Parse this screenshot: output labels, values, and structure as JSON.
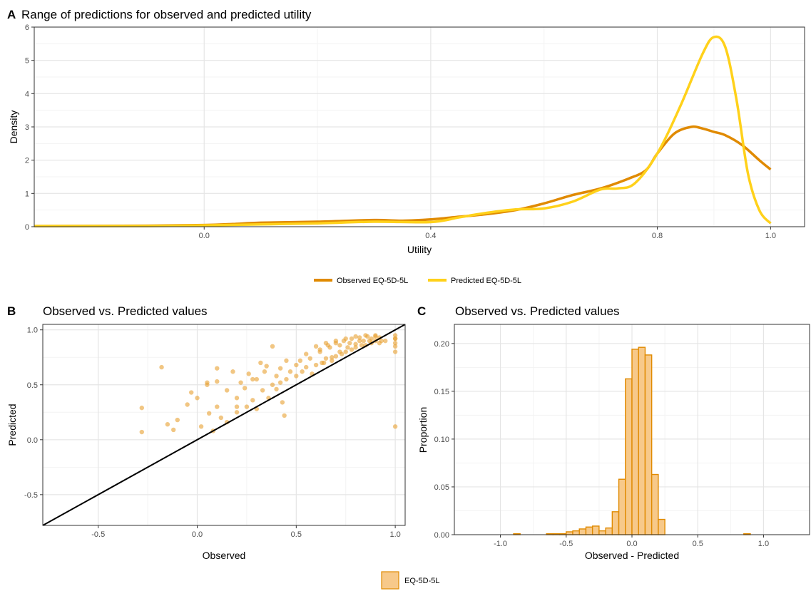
{
  "colors": {
    "observed": "#E08A00",
    "predicted": "#FFD11A",
    "scatter": "#E8A030",
    "hist_fill": "#F7C98A",
    "hist_stroke": "#E08A00",
    "grid_major": "#E5E5E5",
    "grid_minor": "#F3F3F3"
  },
  "chart_data": [
    {
      "panel_tag": "A",
      "type": "line",
      "title": "Range of predictions for observed and predicted utility",
      "xlabel": "Utility",
      "ylabel": "Density",
      "xlim": [
        -0.3,
        1.06
      ],
      "ylim": [
        0,
        6
      ],
      "xticks": [
        0.0,
        0.4,
        0.8,
        1.0
      ],
      "xtick_labels": [
        "0.0",
        "0.4",
        "0.8",
        "1.0"
      ],
      "yticks": [
        0,
        1,
        2,
        3,
        4,
        5,
        6
      ],
      "ytick_labels": [
        "0",
        "1",
        "2",
        "3",
        "4",
        "5",
        "6"
      ],
      "grid": true,
      "legend": {
        "position": "bottom",
        "entries": [
          "Observed EQ-5D-5L",
          "Predicted EQ-5D-5L"
        ]
      },
      "series": [
        {
          "name": "Observed EQ-5D-5L",
          "x": [
            -0.3,
            -0.1,
            0.0,
            0.05,
            0.1,
            0.2,
            0.3,
            0.35,
            0.4,
            0.45,
            0.5,
            0.55,
            0.6,
            0.65,
            0.7,
            0.75,
            0.78,
            0.8,
            0.83,
            0.86,
            0.88,
            0.9,
            0.92,
            0.95,
            0.98,
            1.0
          ],
          "y": [
            0.02,
            0.03,
            0.05,
            0.08,
            0.12,
            0.15,
            0.2,
            0.18,
            0.22,
            0.3,
            0.38,
            0.5,
            0.7,
            0.95,
            1.15,
            1.45,
            1.7,
            2.2,
            2.8,
            3.0,
            2.95,
            2.85,
            2.75,
            2.45,
            2.0,
            1.72
          ]
        },
        {
          "name": "Predicted EQ-5D-5L",
          "x": [
            -0.3,
            -0.1,
            0.0,
            0.1,
            0.2,
            0.3,
            0.4,
            0.45,
            0.5,
            0.55,
            0.6,
            0.65,
            0.7,
            0.73,
            0.76,
            0.8,
            0.84,
            0.88,
            0.9,
            0.92,
            0.94,
            0.96,
            0.98,
            1.0
          ],
          "y": [
            0.02,
            0.02,
            0.04,
            0.07,
            0.1,
            0.15,
            0.14,
            0.28,
            0.42,
            0.52,
            0.55,
            0.75,
            1.12,
            1.15,
            1.3,
            2.2,
            3.6,
            5.2,
            5.7,
            5.4,
            3.8,
            1.6,
            0.5,
            0.1
          ]
        }
      ]
    },
    {
      "panel_tag": "B",
      "type": "scatter",
      "title": "Observed vs. Predicted values",
      "xlabel": "Observed",
      "ylabel": "Predicted",
      "xlim": [
        -0.78,
        1.05
      ],
      "ylim": [
        -0.78,
        1.05
      ],
      "xticks": [
        -0.5,
        0.0,
        0.5,
        1.0
      ],
      "xtick_labels": [
        "-0.5",
        "0.0",
        "0.5",
        "1.0"
      ],
      "yticks": [
        -0.5,
        0.0,
        0.5,
        1.0
      ],
      "ytick_labels": [
        "-0.5",
        "0.0",
        "0.5",
        "1.0"
      ],
      "grid": true,
      "reference_line": {
        "slope": 1,
        "intercept": 0
      },
      "points": {
        "x": [
          -0.28,
          -0.28,
          -0.18,
          -0.15,
          -0.12,
          -0.1,
          -0.05,
          -0.03,
          0.0,
          0.02,
          0.05,
          0.06,
          0.08,
          0.1,
          0.1,
          0.12,
          0.15,
          0.15,
          0.18,
          0.2,
          0.2,
          0.22,
          0.24,
          0.25,
          0.26,
          0.28,
          0.3,
          0.3,
          0.32,
          0.33,
          0.35,
          0.36,
          0.38,
          0.38,
          0.4,
          0.4,
          0.42,
          0.42,
          0.43,
          0.45,
          0.45,
          0.47,
          0.5,
          0.5,
          0.52,
          0.53,
          0.55,
          0.55,
          0.57,
          0.58,
          0.6,
          0.6,
          0.62,
          0.63,
          0.65,
          0.65,
          0.67,
          0.68,
          0.7,
          0.7,
          0.72,
          0.73,
          0.75,
          0.75,
          0.77,
          0.78,
          0.8,
          0.8,
          0.82,
          0.83,
          0.85,
          0.85,
          0.87,
          0.88,
          0.9,
          0.9,
          0.92,
          0.93,
          0.62,
          0.66,
          0.7,
          0.74,
          0.78,
          0.82,
          0.86,
          0.9,
          0.64,
          0.68,
          0.72,
          0.76,
          0.8,
          0.84,
          0.88,
          0.92,
          0.95,
          1.0,
          1.0,
          1.0,
          1.0,
          1.0,
          1.0,
          1.0,
          0.28,
          0.1,
          0.05,
          0.34,
          0.44,
          0.2
        ],
        "y": [
          0.29,
          0.07,
          0.66,
          0.14,
          0.09,
          0.18,
          0.32,
          0.43,
          0.38,
          0.12,
          0.52,
          0.24,
          0.08,
          0.53,
          0.3,
          0.2,
          0.45,
          0.16,
          0.62,
          0.38,
          0.25,
          0.52,
          0.47,
          0.3,
          0.6,
          0.36,
          0.55,
          0.28,
          0.7,
          0.45,
          0.67,
          0.38,
          0.85,
          0.5,
          0.58,
          0.46,
          0.65,
          0.52,
          0.34,
          0.72,
          0.55,
          0.62,
          0.68,
          0.58,
          0.72,
          0.62,
          0.78,
          0.66,
          0.74,
          0.6,
          0.85,
          0.68,
          0.8,
          0.7,
          0.88,
          0.74,
          0.84,
          0.72,
          0.9,
          0.76,
          0.86,
          0.78,
          0.92,
          0.8,
          0.88,
          0.82,
          0.94,
          0.84,
          0.9,
          0.86,
          0.95,
          0.86,
          0.9,
          0.88,
          0.95,
          0.9,
          0.93,
          0.9,
          0.82,
          0.86,
          0.88,
          0.9,
          0.92,
          0.93,
          0.94,
          0.94,
          0.7,
          0.75,
          0.8,
          0.84,
          0.87,
          0.9,
          0.92,
          0.88,
          0.9,
          0.95,
          0.92,
          0.88,
          0.85,
          0.8,
          0.92,
          0.12,
          0.55,
          0.65,
          0.5,
          0.62,
          0.22,
          0.3
        ]
      }
    },
    {
      "panel_tag": "C",
      "type": "bar",
      "title": "Observed vs. Predicted values",
      "xlabel": "Observed - Predicted",
      "ylabel": "Proportion",
      "xlim": [
        -1.35,
        1.35
      ],
      "ylim": [
        0,
        0.22
      ],
      "xticks": [
        -1.0,
        -0.5,
        0.0,
        0.5,
        1.0
      ],
      "xtick_labels": [
        "-1.0",
        "-0.5",
        "0.0",
        "0.5",
        "1.0"
      ],
      "yticks": [
        0.0,
        0.05,
        0.1,
        0.15,
        0.2
      ],
      "ytick_labels": [
        "0.00",
        "0.05",
        "0.10",
        "0.15",
        "0.20"
      ],
      "grid": true,
      "legend": {
        "position": "bottom",
        "entries": [
          "EQ-5D-5L"
        ]
      },
      "bin_width": 0.05,
      "bins": {
        "x_start": [
          -0.9,
          -0.65,
          -0.6,
          -0.55,
          -0.5,
          -0.45,
          -0.4,
          -0.35,
          -0.3,
          -0.25,
          -0.2,
          -0.15,
          -0.1,
          -0.05,
          0.0,
          0.05,
          0.1,
          0.15,
          0.2,
          0.85
        ],
        "values": [
          0.001,
          0.001,
          0.001,
          0.001,
          0.003,
          0.004,
          0.006,
          0.008,
          0.009,
          0.004,
          0.007,
          0.024,
          0.058,
          0.163,
          0.194,
          0.196,
          0.188,
          0.063,
          0.016,
          0.001
        ]
      }
    }
  ]
}
